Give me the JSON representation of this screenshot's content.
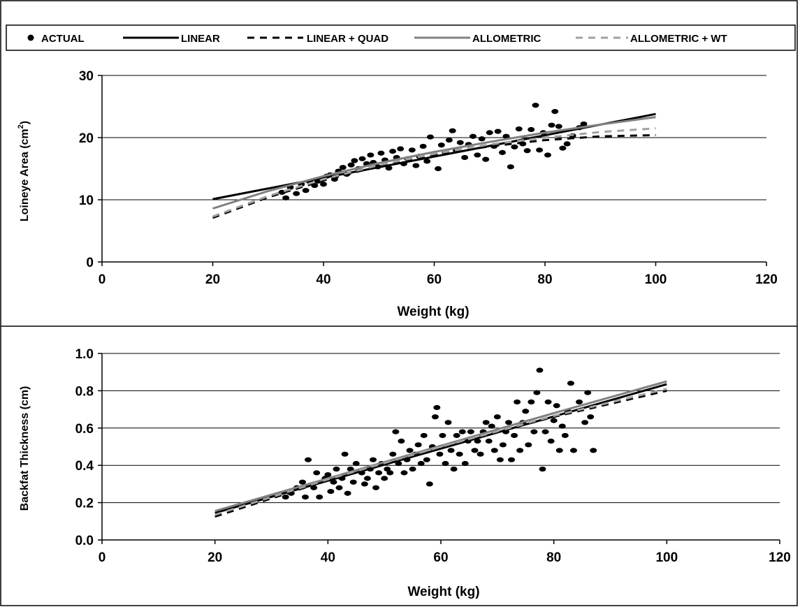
{
  "legend": {
    "items": [
      {
        "label": "ACTUAL",
        "style": "marker",
        "color": "#000000"
      },
      {
        "label": "LINEAR",
        "style": "solid",
        "color": "#000000"
      },
      {
        "label": "LINEAR + QUAD",
        "style": "dashed",
        "color": "#000000"
      },
      {
        "label": "ALLOMETRIC",
        "style": "solid",
        "color": "#808080"
      },
      {
        "label": "ALLOMETRIC + WT",
        "style": "dashed",
        "color": "#a0a0a0"
      }
    ]
  },
  "chart_data": [
    {
      "type": "scatter",
      "xlabel": "Weight (kg)",
      "ylabel": "Loineye Area (cm",
      "ylabel_sup": "2",
      "ylabel_close": ")",
      "xlim": [
        0,
        120
      ],
      "ylim": [
        0,
        30
      ],
      "xticks": [
        "0",
        "20",
        "40",
        "60",
        "80",
        "100",
        "120"
      ],
      "yticks": [
        "0",
        "10",
        "20",
        "30"
      ],
      "grid": "horizontal",
      "actual": [
        [
          32.5,
          11.2
        ],
        [
          33.2,
          10.3
        ],
        [
          34.0,
          12.0
        ],
        [
          35.1,
          11.0
        ],
        [
          36.0,
          12.5
        ],
        [
          36.8,
          11.5
        ],
        [
          37.5,
          12.9
        ],
        [
          38.4,
          12.3
        ],
        [
          39.0,
          13.0
        ],
        [
          40.0,
          12.5
        ],
        [
          40.6,
          13.8
        ],
        [
          41.2,
          14.0
        ],
        [
          42.0,
          13.3
        ],
        [
          42.7,
          14.6
        ],
        [
          43.5,
          15.2
        ],
        [
          44.2,
          14.1
        ],
        [
          45.0,
          15.6
        ],
        [
          45.6,
          16.3
        ],
        [
          46.3,
          15.0
        ],
        [
          47.0,
          16.6
        ],
        [
          47.8,
          15.8
        ],
        [
          48.5,
          17.2
        ],
        [
          49.0,
          16.0
        ],
        [
          49.8,
          15.3
        ],
        [
          50.4,
          17.5
        ],
        [
          51.1,
          16.4
        ],
        [
          51.8,
          15.1
        ],
        [
          52.5,
          17.8
        ],
        [
          53.2,
          16.8
        ],
        [
          53.9,
          18.2
        ],
        [
          54.5,
          15.8
        ],
        [
          55.2,
          16.6
        ],
        [
          56.0,
          18.0
        ],
        [
          56.7,
          15.5
        ],
        [
          57.3,
          17.0
        ],
        [
          58.0,
          18.6
        ],
        [
          58.7,
          16.2
        ],
        [
          59.3,
          20.1
        ],
        [
          60.0,
          17.3
        ],
        [
          60.7,
          15.0
        ],
        [
          61.3,
          18.8
        ],
        [
          62.0,
          17.6
        ],
        [
          62.7,
          19.6
        ],
        [
          63.3,
          21.1
        ],
        [
          64.0,
          17.9
        ],
        [
          64.7,
          19.2
        ],
        [
          65.5,
          16.8
        ],
        [
          66.2,
          18.9
        ],
        [
          67.0,
          20.2
        ],
        [
          67.8,
          17.2
        ],
        [
          68.6,
          19.8
        ],
        [
          69.3,
          16.5
        ],
        [
          70.0,
          20.8
        ],
        [
          70.8,
          18.6
        ],
        [
          71.5,
          21.0
        ],
        [
          72.3,
          17.6
        ],
        [
          73.0,
          20.2
        ],
        [
          73.8,
          15.3
        ],
        [
          74.5,
          18.5
        ],
        [
          75.3,
          21.4
        ],
        [
          76.0,
          19.0
        ],
        [
          76.8,
          17.9
        ],
        [
          77.5,
          21.3
        ],
        [
          78.3,
          25.2
        ],
        [
          79.0,
          18.0
        ],
        [
          79.7,
          20.8
        ],
        [
          80.5,
          17.2
        ],
        [
          81.2,
          22.0
        ],
        [
          81.8,
          24.2
        ],
        [
          82.5,
          21.8
        ],
        [
          83.2,
          18.3
        ],
        [
          84.0,
          19.0
        ],
        [
          85.0,
          20.3
        ],
        [
          86.2,
          21.6
        ],
        [
          87.0,
          22.2
        ]
      ],
      "series": [
        {
          "name": "LINEAR",
          "x": [
            20,
            100
          ],
          "y": [
            10.1,
            23.8
          ]
        },
        {
          "name": "LINEAR + QUAD",
          "x": [
            20,
            30,
            40,
            50,
            60,
            70,
            80,
            90,
            100
          ],
          "y": [
            7.1,
            10.4,
            13.1,
            15.4,
            17.2,
            18.6,
            19.6,
            20.2,
            20.4
          ]
        },
        {
          "name": "ALLOMETRIC",
          "x": [
            20,
            30,
            40,
            50,
            60,
            70,
            80,
            90,
            100
          ],
          "y": [
            8.6,
            11.4,
            13.8,
            15.9,
            17.7,
            19.3,
            20.8,
            22.1,
            23.3
          ]
        },
        {
          "name": "ALLOMETRIC + WT",
          "x": [
            20,
            30,
            40,
            50,
            60,
            70,
            80,
            90,
            100
          ],
          "y": [
            7.3,
            10.6,
            13.3,
            15.6,
            17.4,
            18.9,
            20.0,
            20.9,
            21.5
          ]
        }
      ]
    },
    {
      "type": "scatter",
      "xlabel": "Weight (kg)",
      "ylabel": "Backfat Thickness (cm)",
      "xlim": [
        0,
        120
      ],
      "ylim": [
        0.0,
        1.0
      ],
      "xticks": [
        "0",
        "20",
        "40",
        "60",
        "80",
        "100",
        "120"
      ],
      "yticks": [
        "0.0",
        "0.2",
        "0.4",
        "0.6",
        "0.8",
        "1.0"
      ],
      "grid": "horizontal",
      "actual": [
        [
          32.5,
          0.23
        ],
        [
          33.5,
          0.25
        ],
        [
          34.5,
          0.28
        ],
        [
          35.5,
          0.31
        ],
        [
          36.0,
          0.23
        ],
        [
          36.5,
          0.43
        ],
        [
          37.5,
          0.28
        ],
        [
          38.0,
          0.36
        ],
        [
          38.5,
          0.23
        ],
        [
          39.5,
          0.33
        ],
        [
          40.0,
          0.35
        ],
        [
          40.5,
          0.26
        ],
        [
          41.0,
          0.31
        ],
        [
          41.5,
          0.38
        ],
        [
          42.0,
          0.28
        ],
        [
          42.5,
          0.33
        ],
        [
          43.0,
          0.46
        ],
        [
          43.5,
          0.25
        ],
        [
          44.0,
          0.38
        ],
        [
          44.5,
          0.31
        ],
        [
          45.0,
          0.41
        ],
        [
          46.0,
          0.36
        ],
        [
          46.5,
          0.3
        ],
        [
          47.0,
          0.33
        ],
        [
          47.5,
          0.38
        ],
        [
          48.0,
          0.43
        ],
        [
          48.5,
          0.28
        ],
        [
          49.0,
          0.36
        ],
        [
          49.5,
          0.41
        ],
        [
          50.0,
          0.33
        ],
        [
          50.5,
          0.38
        ],
        [
          51.0,
          0.36
        ],
        [
          51.5,
          0.46
        ],
        [
          52.0,
          0.58
        ],
        [
          52.5,
          0.41
        ],
        [
          53.0,
          0.53
        ],
        [
          53.5,
          0.36
        ],
        [
          54.0,
          0.43
        ],
        [
          54.5,
          0.48
        ],
        [
          55.0,
          0.38
        ],
        [
          55.5,
          0.46
        ],
        [
          56.0,
          0.51
        ],
        [
          56.5,
          0.41
        ],
        [
          57.0,
          0.56
        ],
        [
          57.5,
          0.43
        ],
        [
          58.0,
          0.3
        ],
        [
          58.5,
          0.5
        ],
        [
          59.0,
          0.66
        ],
        [
          59.3,
          0.71
        ],
        [
          59.8,
          0.46
        ],
        [
          60.3,
          0.56
        ],
        [
          60.8,
          0.41
        ],
        [
          61.3,
          0.63
        ],
        [
          61.8,
          0.48
        ],
        [
          62.3,
          0.38
        ],
        [
          62.8,
          0.56
        ],
        [
          63.3,
          0.46
        ],
        [
          63.8,
          0.58
        ],
        [
          64.3,
          0.41
        ],
        [
          64.8,
          0.53
        ],
        [
          65.3,
          0.58
        ],
        [
          66.0,
          0.48
        ],
        [
          66.5,
          0.53
        ],
        [
          67.0,
          0.46
        ],
        [
          67.5,
          0.58
        ],
        [
          68.0,
          0.63
        ],
        [
          68.5,
          0.53
        ],
        [
          69.0,
          0.61
        ],
        [
          69.5,
          0.48
        ],
        [
          70.0,
          0.66
        ],
        [
          70.5,
          0.43
        ],
        [
          71.0,
          0.51
        ],
        [
          71.5,
          0.58
        ],
        [
          72.0,
          0.63
        ],
        [
          72.5,
          0.43
        ],
        [
          73.0,
          0.56
        ],
        [
          73.5,
          0.74
        ],
        [
          74.0,
          0.48
        ],
        [
          74.5,
          0.63
        ],
        [
          75.0,
          0.69
        ],
        [
          75.5,
          0.51
        ],
        [
          76.0,
          0.74
        ],
        [
          76.5,
          0.58
        ],
        [
          77.0,
          0.79
        ],
        [
          77.5,
          0.91
        ],
        [
          78.0,
          0.38
        ],
        [
          78.5,
          0.58
        ],
        [
          79.0,
          0.74
        ],
        [
          79.5,
          0.53
        ],
        [
          80.0,
          0.64
        ],
        [
          80.5,
          0.72
        ],
        [
          81.0,
          0.48
        ],
        [
          81.5,
          0.61
        ],
        [
          82.0,
          0.56
        ],
        [
          82.5,
          0.69
        ],
        [
          83.0,
          0.84
        ],
        [
          83.5,
          0.48
        ],
        [
          84.5,
          0.74
        ],
        [
          85.5,
          0.63
        ],
        [
          86.0,
          0.79
        ],
        [
          86.5,
          0.66
        ],
        [
          87.0,
          0.48
        ]
      ],
      "series": [
        {
          "name": "LINEAR",
          "x": [
            20,
            100
          ],
          "y": [
            0.145,
            0.835
          ]
        },
        {
          "name": "LINEAR + QUAD",
          "x": [
            20,
            40,
            60,
            80,
            100
          ],
          "y": [
            0.125,
            0.32,
            0.5,
            0.66,
            0.8
          ]
        },
        {
          "name": "ALLOMETRIC",
          "x": [
            20,
            40,
            60,
            80,
            100
          ],
          "y": [
            0.155,
            0.33,
            0.505,
            0.68,
            0.85
          ]
        },
        {
          "name": "ALLOMETRIC + WT",
          "x": [
            20,
            40,
            60,
            80,
            100
          ],
          "y": [
            0.135,
            0.325,
            0.5,
            0.665,
            0.81
          ]
        }
      ]
    }
  ],
  "styles": {
    "LINEAR": {
      "color": "#000000",
      "dash": ""
    },
    "LINEAR + QUAD": {
      "color": "#000000",
      "dash": "10,8"
    },
    "ALLOMETRIC": {
      "color": "#808080",
      "dash": ""
    },
    "ALLOMETRIC + WT": {
      "color": "#a0a0a0",
      "dash": "10,8"
    }
  }
}
